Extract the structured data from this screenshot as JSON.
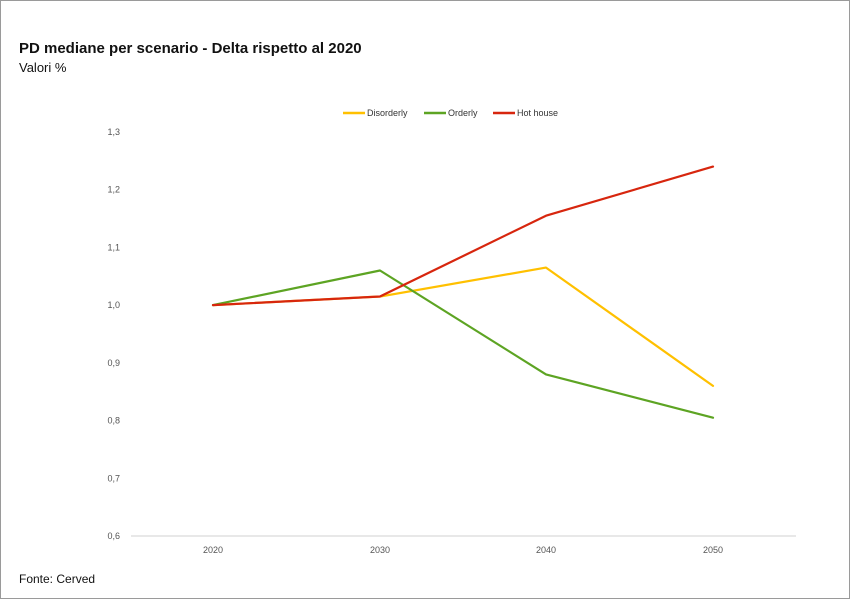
{
  "chart_data": {
    "type": "line",
    "title": "PD mediane per scenario - Delta rispetto al 2020",
    "subtitle": "Valori %",
    "source": "Fonte: Cerved",
    "x": [
      "2020",
      "2030",
      "2040",
      "2050"
    ],
    "ylim": [
      0.6,
      1.3
    ],
    "yticks": [
      "0,6",
      "0,7",
      "0,8",
      "0,9",
      "1,0",
      "1,1",
      "1,2",
      "1,3"
    ],
    "ytick_values": [
      0.6,
      0.7,
      0.8,
      0.9,
      1.0,
      1.1,
      1.2,
      1.3
    ],
    "grid": false,
    "legend_position": "top-center",
    "series": [
      {
        "name": "Disorderly",
        "color": "#FFC000",
        "values": [
          1.0,
          1.015,
          1.065,
          0.86
        ]
      },
      {
        "name": "Orderly",
        "color": "#5DA423",
        "values": [
          1.0,
          1.06,
          0.88,
          0.805
        ]
      },
      {
        "name": "Hot house",
        "color": "#D7260E",
        "values": [
          1.0,
          1.015,
          1.155,
          1.24
        ]
      }
    ]
  }
}
